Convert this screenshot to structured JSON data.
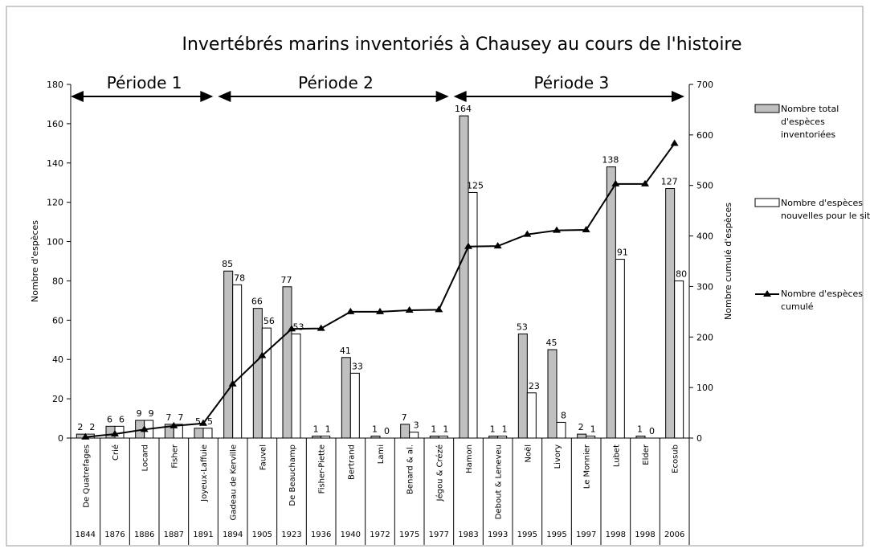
{
  "chart_data": {
    "type": "bar",
    "title": "Invertébrés marins inventoriés à Chausey au cours de l'histoire",
    "categories": [
      "De Quatrefages",
      "Crié",
      "Locard",
      "Fisher",
      "Joyeux-Laffuie",
      "Gadeau de Kerville",
      "Fauvel",
      "De Beauchamp",
      "Fisher-Piette",
      "Bertrand",
      "Lami",
      "Benard & al.",
      "Jégou & Crézé",
      "Hamon",
      "Debout & Leneveu",
      "Noël",
      "Livory",
      "Le Monnier",
      "Lubet",
      "Elder",
      "Ecosub"
    ],
    "years": [
      "1844",
      "1876",
      "1886",
      "1887",
      "1891",
      "1894",
      "1905",
      "1923",
      "1936",
      "1940",
      "1972",
      "1975",
      "1977",
      "1983",
      "1993",
      "1995",
      "1995",
      "1997",
      "1998",
      "1998",
      "2006"
    ],
    "periods": [
      "Période 1",
      "Période 2",
      "Période 3"
    ],
    "ylabel": "Nombre d'espèces",
    "y2label": "Nombre cumulé d'espèces",
    "ylim": [
      0,
      180
    ],
    "yticks": [
      0,
      20,
      40,
      60,
      80,
      100,
      120,
      140,
      160,
      180
    ],
    "y2lim": [
      0,
      700
    ],
    "y2ticks": [
      0,
      100,
      200,
      300,
      400,
      500,
      600,
      700
    ],
    "series": [
      {
        "name": "Nombre total d'espèces inventoriées",
        "type": "bar",
        "color": "#c0c0c0",
        "values": [
          2,
          6,
          9,
          7,
          5,
          85,
          66,
          77,
          1,
          41,
          1,
          7,
          1,
          164,
          1,
          53,
          45,
          2,
          138,
          1,
          127
        ]
      },
      {
        "name": "Nombre d'espèces nouvelles pour le site",
        "type": "bar",
        "color": "#ffffff",
        "values": [
          2,
          6,
          9,
          7,
          5,
          78,
          56,
          53,
          1,
          33,
          0,
          3,
          1,
          125,
          1,
          23,
          8,
          1,
          91,
          0,
          80
        ]
      },
      {
        "name": "Nombre d'espèces cumulé",
        "type": "line",
        "axis": "y2",
        "color": "#000000",
        "values": [
          2,
          8,
          17,
          24,
          29,
          107,
          163,
          216,
          217,
          250,
          250,
          253,
          254,
          379,
          380,
          403,
          411,
          412,
          503,
          503,
          583
        ]
      }
    ]
  }
}
